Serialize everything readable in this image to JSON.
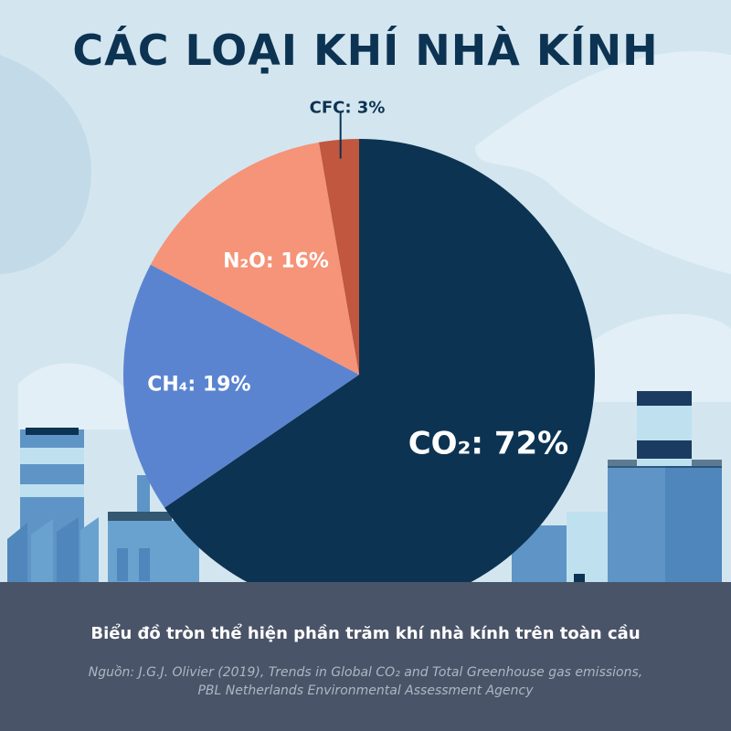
{
  "chart_data": {
    "type": "pie",
    "title": "CÁC LOẠI KHÍ NHÀ KÍNH",
    "slices": [
      {
        "label": "CO₂: 72%",
        "name": "CO2",
        "value": 72,
        "color": "#0d3352"
      },
      {
        "label": "CH₄: 19%",
        "name": "CH4",
        "value": 19,
        "color": "#5b84d0"
      },
      {
        "label": "N₂O: 16%",
        "name": "N2O",
        "value": 16,
        "color": "#f59479"
      },
      {
        "label": "CFC: 3%",
        "name": "CFC",
        "value": 3,
        "color": "#c0573e"
      }
    ],
    "start": "top",
    "direction": "clockwise"
  },
  "caption": "Biểu đồ tròn thể hiện phần trăm khí nhà kính trên toàn cầu",
  "source_line1": "Nguồn: J.G.J. Olivier (2019), Trends in Global CO₂ and Total Greenhouse gas emissions,",
  "source_line2": "PBL Netherlands Environmental Assessment Agency"
}
